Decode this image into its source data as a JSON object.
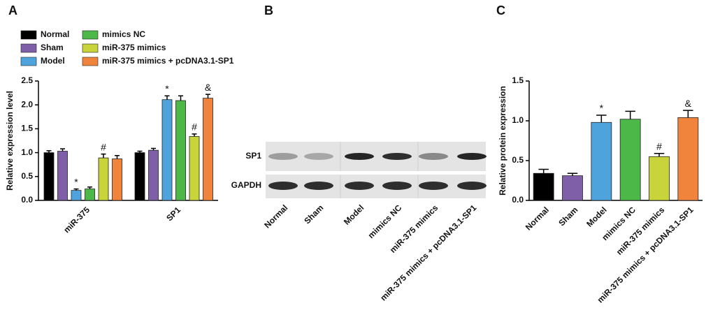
{
  "chart_data": [
    {
      "type": "grouped-bar",
      "panel": "A",
      "y_label": "Relative expression level",
      "categories": [
        "miR-375",
        "SP1"
      ],
      "series": [
        {
          "name": "Normal",
          "color": "#000000",
          "values": [
            1.0,
            1.0
          ],
          "errors": [
            0.04,
            0.03
          ],
          "annotations": [
            null,
            null
          ]
        },
        {
          "name": "Sham",
          "color": "#7e5fa8",
          "values": [
            1.03,
            1.05
          ],
          "errors": [
            0.05,
            0.04
          ],
          "annotations": [
            null,
            null
          ]
        },
        {
          "name": "Model",
          "color": "#4fa3dc",
          "values": [
            0.21,
            2.11
          ],
          "errors": [
            0.03,
            0.08
          ],
          "annotations": [
            "*",
            "*"
          ]
        },
        {
          "name": "mimics NC",
          "color": "#4cb848",
          "values": [
            0.24,
            2.09
          ],
          "errors": [
            0.04,
            0.1
          ],
          "annotations": [
            null,
            null
          ]
        },
        {
          "name": "miR-375 mimics",
          "color": "#c8d43a",
          "values": [
            0.89,
            1.34
          ],
          "errors": [
            0.08,
            0.05
          ],
          "annotations": [
            "#",
            "#"
          ]
        },
        {
          "name": "miR-375 mimics + pcDNA3.1-SP1",
          "color": "#f0843c",
          "values": [
            0.87,
            2.14
          ],
          "errors": [
            0.07,
            0.08
          ],
          "annotations": [
            null,
            "&"
          ]
        }
      ],
      "ylim": [
        0,
        2.5
      ],
      "yticks": [
        {
          "value": 0,
          "label": "0.0"
        },
        0.5,
        {
          "value": 1,
          "label": "1.0"
        },
        1.5,
        {
          "value": 2,
          "label": "2.0"
        },
        2.5
      ]
    },
    {
      "type": "bar",
      "panel": "C",
      "y_label": "Relative protein expression",
      "categories": [
        "Normal",
        "Sham",
        "Model",
        "mimics NC",
        "miR-375 mimics",
        "miR-375 mimics + pcDNA3.1-SP1"
      ],
      "values": [
        0.34,
        0.31,
        0.98,
        1.02,
        0.55,
        1.04
      ],
      "errors": [
        0.05,
        0.03,
        0.09,
        0.1,
        0.04,
        0.09
      ],
      "annotations": [
        null,
        null,
        "*",
        null,
        "#",
        "&"
      ],
      "colors": [
        "#000000",
        "#7e5fa8",
        "#4fa3dc",
        "#4cb848",
        "#c8d43a",
        "#f0843c"
      ],
      "ylim": [
        0,
        1.5
      ],
      "yticks": [
        {
          "value": 0,
          "label": "0.0"
        },
        0.5,
        {
          "value": 1,
          "label": "1.0"
        },
        1.5
      ]
    }
  ],
  "blot": {
    "panel": "B",
    "rows": [
      "SP1",
      "GAPDH"
    ],
    "lanes": [
      "Normal",
      "Sham",
      "Model",
      "mimics NC",
      "miR-375 mimics",
      "miR-375 mimics + pcDNA3.1-SP1"
    ]
  }
}
